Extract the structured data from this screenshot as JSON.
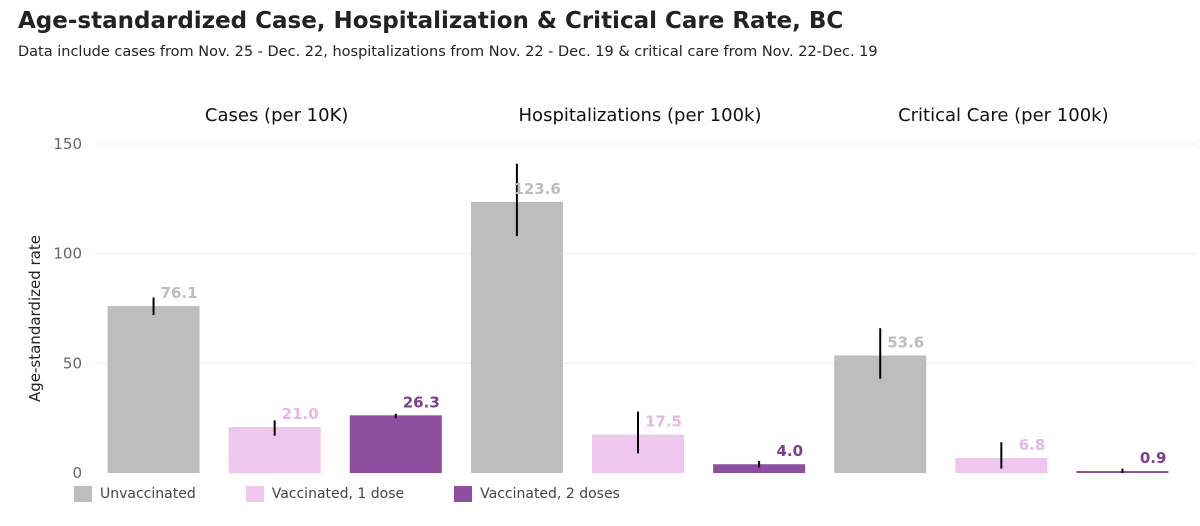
{
  "chart_data": {
    "type": "bar",
    "title": "Age-standardized Case, Hospitalization & Critical Care Rate, BC",
    "subtitle": "Data include cases from Nov. 25 - Dec. 22, hospitalizations from Nov. 22 - Dec. 19 & critical care from Nov. 22-Dec. 19",
    "ylabel": "Age-standardized rate",
    "ylim": [
      0,
      150
    ],
    "yticks": [
      "0",
      "50",
      "100",
      "150"
    ],
    "colors": {
      "Unvaccinated": "#bdbdbd",
      "Vaccinated, 1 dose": "#eec6ee",
      "Vaccinated, 2 doses": "#8e4ea0"
    },
    "label_colors": {
      "Unvaccinated": "#bdbdbd",
      "Vaccinated, 1 dose": "#e8b6e8",
      "Vaccinated, 2 doses": "#7d3f90"
    },
    "legend": [
      "Unvaccinated",
      "Vaccinated, 1 dose",
      "Vaccinated, 2 doses"
    ],
    "panels": [
      {
        "name": "Cases (per 10K)",
        "bars": [
          {
            "series": "Unvaccinated",
            "value": 76.1,
            "label": "76.1",
            "ci": [
              72,
              80
            ]
          },
          {
            "series": "Vaccinated, 1 dose",
            "value": 21.0,
            "label": "21.0",
            "ci": [
              17,
              24
            ]
          },
          {
            "series": "Vaccinated, 2 doses",
            "value": 26.3,
            "label": "26.3",
            "ci": [
              25,
              27
            ]
          }
        ]
      },
      {
        "name": "Hospitalizations (per 100k)",
        "bars": [
          {
            "series": "Unvaccinated",
            "value": 123.6,
            "label": "123.6",
            "ci": [
              108,
              141
            ]
          },
          {
            "series": "Vaccinated, 1 dose",
            "value": 17.5,
            "label": "17.5",
            "ci": [
              9,
              28
            ]
          },
          {
            "series": "Vaccinated, 2 doses",
            "value": 4.0,
            "label": "4.0",
            "ci": [
              2.5,
              5.5
            ]
          }
        ]
      },
      {
        "name": "Critical Care (per 100k)",
        "bars": [
          {
            "series": "Unvaccinated",
            "value": 53.6,
            "label": "53.6",
            "ci": [
              43,
              66
            ]
          },
          {
            "series": "Vaccinated, 1 dose",
            "value": 6.8,
            "label": "6.8",
            "ci": [
              2,
              14
            ]
          },
          {
            "series": "Vaccinated, 2 doses",
            "value": 0.9,
            "label": "0.9",
            "ci": [
              0,
              2
            ]
          }
        ]
      }
    ]
  }
}
